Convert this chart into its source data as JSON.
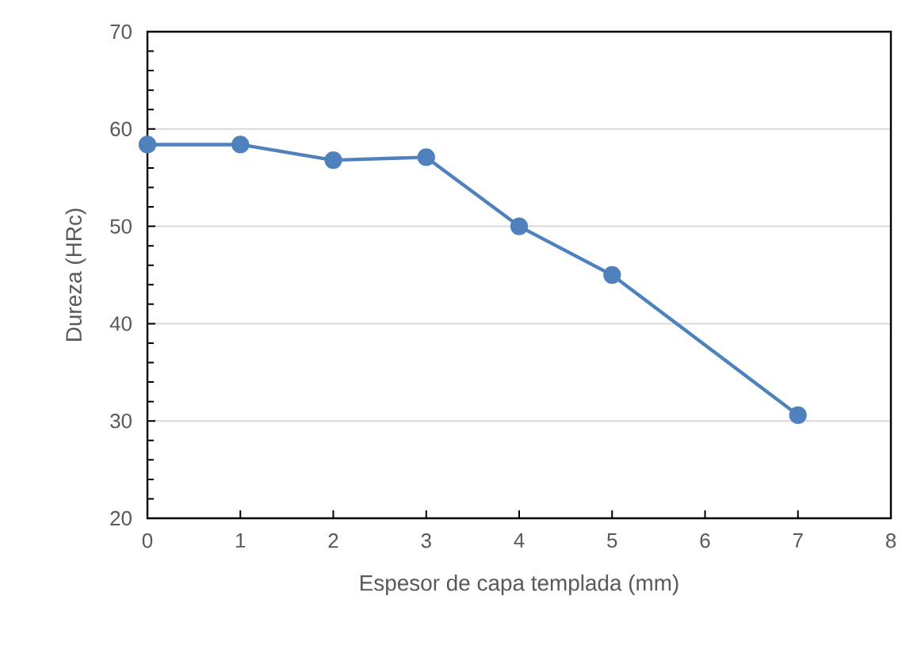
{
  "chart_data": {
    "type": "line",
    "xlabel": "Espesor de capa templada (mm)",
    "ylabel": "Dureza (HRc)",
    "x": [
      0,
      1,
      2,
      3,
      4,
      5,
      7
    ],
    "series": [
      {
        "color": "#4f81bd",
        "values": [
          58.4,
          58.4,
          56.8,
          57.1,
          50,
          45,
          30.6
        ]
      }
    ],
    "xlim": [
      0,
      8
    ],
    "ylim": [
      20,
      70
    ],
    "xticks": [
      0,
      1,
      2,
      3,
      4,
      5,
      6,
      7,
      8
    ],
    "yticks": [
      20,
      30,
      40,
      50,
      60,
      70
    ],
    "grid": "y",
    "marker": "circle",
    "line_style": "solid"
  }
}
